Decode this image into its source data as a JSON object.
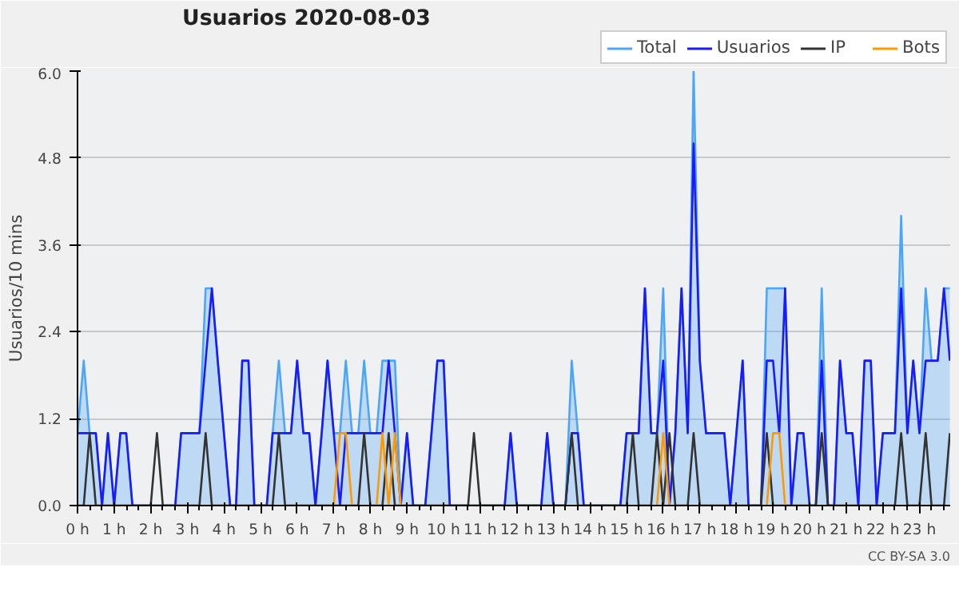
{
  "chart_data": {
    "type": "line",
    "title": "Usuarios  2020-08-03",
    "ylabel": "Usuarios/10 mins",
    "annotations": [
      "CC BY-SA 3.0"
    ],
    "x": [
      0,
      0.17,
      0.33,
      0.5,
      0.67,
      0.83,
      1,
      1.17,
      1.33,
      1.5,
      1.67,
      1.83,
      2,
      2.17,
      2.33,
      2.5,
      2.67,
      2.83,
      3,
      3.17,
      3.33,
      3.5,
      3.67,
      3.83,
      4,
      4.17,
      4.33,
      4.5,
      4.67,
      4.83,
      5,
      5.17,
      5.33,
      5.5,
      5.67,
      5.83,
      6,
      6.17,
      6.33,
      6.5,
      6.67,
      6.83,
      7,
      7.17,
      7.33,
      7.5,
      7.67,
      7.83,
      8,
      8.17,
      8.33,
      8.5,
      8.67,
      8.83,
      9,
      9.17,
      9.33,
      9.5,
      9.67,
      9.83,
      10,
      10.17,
      10.33,
      10.5,
      10.67,
      10.83,
      11,
      11.17,
      11.33,
      11.5,
      11.67,
      11.83,
      12,
      12.17,
      12.33,
      12.5,
      12.67,
      12.83,
      13,
      13.17,
      13.33,
      13.5,
      13.67,
      13.83,
      14,
      14.17,
      14.33,
      14.5,
      14.67,
      14.83,
      15,
      15.17,
      15.33,
      15.5,
      15.67,
      15.83,
      16,
      16.17,
      16.33,
      16.5,
      16.67,
      16.83,
      17,
      17.17,
      17.33,
      17.5,
      17.67,
      17.83,
      18,
      18.17,
      18.33,
      18.5,
      18.67,
      18.83,
      19,
      19.17,
      19.33,
      19.5,
      19.67,
      19.83,
      20,
      20.17,
      20.33,
      20.5,
      20.67,
      20.83,
      21,
      21.17,
      21.33,
      21.5,
      21.67,
      21.83,
      22,
      22.17,
      22.33,
      22.5,
      22.67,
      22.83,
      23,
      23.17,
      23.33,
      23.5,
      23.67,
      23.83
    ],
    "xlim": [
      0,
      23.84
    ],
    "xticks": [
      {
        "value": 0,
        "label": "0 h"
      },
      {
        "value": 1,
        "label": "1 h"
      },
      {
        "value": 2,
        "label": "2 h"
      },
      {
        "value": 3,
        "label": "3 h"
      },
      {
        "value": 4,
        "label": "4 h"
      },
      {
        "value": 5,
        "label": "5 h"
      },
      {
        "value": 6,
        "label": "6 h"
      },
      {
        "value": 7,
        "label": "7 h"
      },
      {
        "value": 8,
        "label": "8 h"
      },
      {
        "value": 9,
        "label": "9 h"
      },
      {
        "value": 10,
        "label": "10 h"
      },
      {
        "value": 11,
        "label": "11 h"
      },
      {
        "value": 12,
        "label": "12 h"
      },
      {
        "value": 13,
        "label": "13 h"
      },
      {
        "value": 14,
        "label": "14 h"
      },
      {
        "value": 15,
        "label": "15 h"
      },
      {
        "value": 16,
        "label": "16 h"
      },
      {
        "value": 17,
        "label": "17 h"
      },
      {
        "value": 18,
        "label": "18 h"
      },
      {
        "value": 19,
        "label": "19 h"
      },
      {
        "value": 20,
        "label": "20 h"
      },
      {
        "value": 21,
        "label": "21 h"
      },
      {
        "value": 22,
        "label": "22 h"
      },
      {
        "value": 23,
        "label": "23 h"
      }
    ],
    "ylim": [
      0,
      6
    ],
    "yticks": [
      {
        "value": 0,
        "label": "0.0"
      },
      1.2,
      2.4,
      3.6,
      4.8,
      {
        "value": 6,
        "label": "6.0"
      }
    ],
    "grid": "y",
    "legend": "top right",
    "series": [
      {
        "name": "Total",
        "type": "area",
        "color": "#4da6f5",
        "values": [
          1,
          2,
          1,
          1,
          0,
          1,
          0,
          1,
          1,
          0,
          0,
          0,
          0,
          0,
          0,
          0,
          0,
          1,
          1,
          1,
          1,
          3,
          3,
          2,
          1,
          0,
          0,
          2,
          2,
          0,
          0,
          0,
          1,
          2,
          1,
          1,
          2,
          1,
          1,
          0,
          1,
          2,
          1,
          1,
          2,
          1,
          1,
          2,
          1,
          1,
          2,
          2,
          2,
          0,
          1,
          0,
          0,
          0,
          1,
          2,
          2,
          0,
          0,
          0,
          0,
          0,
          0,
          0,
          0,
          0,
          0,
          1,
          0,
          0,
          0,
          0,
          0,
          1,
          0,
          0,
          0,
          2,
          1,
          0,
          0,
          0,
          0,
          0,
          0,
          0,
          1,
          1,
          1,
          3,
          1,
          1,
          3,
          0,
          1,
          3,
          1,
          6,
          2,
          1,
          1,
          1,
          1,
          0,
          1,
          2,
          0,
          0,
          0,
          3,
          3,
          3,
          3,
          0,
          1,
          1,
          0,
          0,
          3,
          0,
          0,
          2,
          1,
          1,
          0,
          2,
          2,
          0,
          1,
          1,
          1,
          4,
          1,
          2,
          1,
          3,
          2,
          2,
          3,
          3
        ]
      },
      {
        "name": "Usuarios",
        "color": "#1a1aff",
        "values": [
          1,
          1,
          1,
          1,
          0,
          1,
          0,
          1,
          1,
          0,
          0,
          0,
          0,
          0,
          0,
          0,
          0,
          1,
          1,
          1,
          1,
          2,
          3,
          2,
          1,
          0,
          0,
          2,
          2,
          0,
          0,
          0,
          1,
          1,
          1,
          1,
          2,
          1,
          1,
          0,
          1,
          2,
          1,
          0,
          1,
          1,
          1,
          1,
          1,
          1,
          1,
          2,
          1,
          0,
          1,
          0,
          0,
          0,
          1,
          2,
          2,
          0,
          0,
          0,
          0,
          0,
          0,
          0,
          0,
          0,
          0,
          1,
          0,
          0,
          0,
          0,
          0,
          1,
          0,
          0,
          0,
          1,
          1,
          0,
          0,
          0,
          0,
          0,
          0,
          0,
          1,
          1,
          1,
          3,
          1,
          1,
          2,
          0,
          1,
          3,
          1,
          5,
          2,
          1,
          1,
          1,
          1,
          0,
          1,
          2,
          0,
          0,
          0,
          2,
          2,
          1,
          3,
          0,
          1,
          1,
          0,
          0,
          2,
          0,
          0,
          2,
          1,
          1,
          0,
          2,
          2,
          0,
          1,
          1,
          1,
          3,
          1,
          2,
          1,
          2,
          2,
          2,
          3,
          2
        ]
      },
      {
        "name": "IP",
        "color": "#333333",
        "values": [
          0,
          0,
          1,
          0,
          0,
          0,
          0,
          0,
          0,
          0,
          0,
          0,
          0,
          1,
          0,
          0,
          0,
          0,
          0,
          0,
          0,
          1,
          0,
          0,
          0,
          0,
          0,
          0,
          0,
          0,
          0,
          0,
          0,
          1,
          0,
          0,
          0,
          0,
          0,
          0,
          0,
          0,
          0,
          0,
          0,
          0,
          0,
          1,
          0,
          0,
          0,
          1,
          0,
          0,
          0,
          0,
          0,
          0,
          0,
          0,
          0,
          0,
          0,
          0,
          0,
          1,
          0,
          0,
          0,
          0,
          0,
          0,
          0,
          0,
          0,
          0,
          0,
          0,
          0,
          0,
          0,
          1,
          0,
          0,
          0,
          0,
          0,
          0,
          0,
          0,
          0,
          1,
          0,
          0,
          0,
          1,
          0,
          1,
          0,
          0,
          0,
          1,
          0,
          0,
          0,
          0,
          0,
          0,
          0,
          0,
          0,
          0,
          0,
          1,
          0,
          0,
          0,
          0,
          0,
          0,
          0,
          0,
          1,
          0,
          0,
          0,
          0,
          0,
          0,
          0,
          0,
          0,
          0,
          0,
          0,
          1,
          0,
          0,
          0,
          1,
          0,
          0,
          0,
          1
        ]
      },
      {
        "name": "Bots",
        "color": "#ff9900",
        "values": [
          null,
          null,
          null,
          null,
          null,
          null,
          null,
          null,
          null,
          null,
          null,
          null,
          null,
          null,
          null,
          null,
          null,
          null,
          null,
          null,
          null,
          null,
          null,
          null,
          null,
          null,
          null,
          null,
          null,
          null,
          null,
          null,
          null,
          null,
          null,
          null,
          null,
          null,
          null,
          null,
          null,
          null,
          0,
          1,
          1,
          0,
          null,
          null,
          null,
          0,
          1,
          0,
          1,
          0,
          null,
          null,
          null,
          null,
          null,
          null,
          null,
          null,
          null,
          null,
          null,
          null,
          null,
          null,
          null,
          null,
          null,
          null,
          null,
          null,
          null,
          null,
          null,
          null,
          null,
          null,
          null,
          null,
          null,
          null,
          null,
          null,
          null,
          null,
          null,
          null,
          null,
          null,
          null,
          null,
          null,
          0,
          1,
          0,
          null,
          null,
          null,
          null,
          null,
          null,
          null,
          null,
          null,
          null,
          null,
          null,
          null,
          null,
          null,
          0,
          1,
          1,
          0,
          null,
          null,
          null,
          null,
          null,
          null,
          null,
          null,
          null,
          null,
          null,
          null,
          null,
          null,
          null,
          null,
          null,
          null,
          null,
          null,
          null,
          null,
          null,
          null,
          null,
          null,
          null
        ]
      }
    ]
  }
}
